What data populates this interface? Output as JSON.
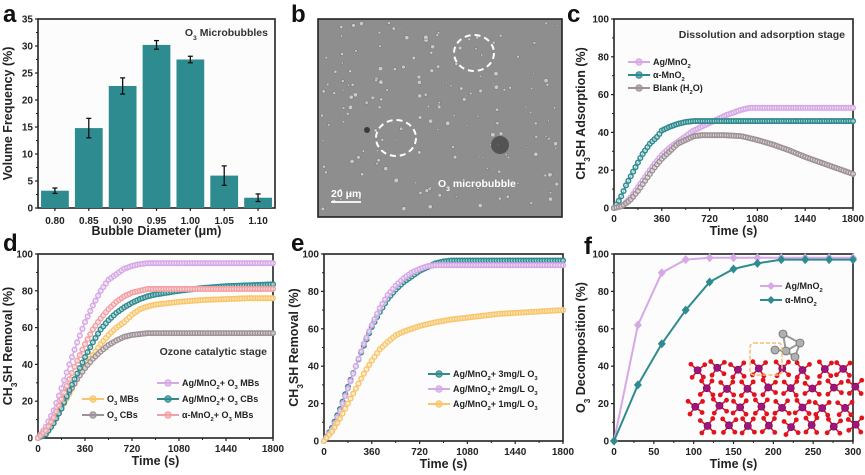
{
  "figure": {
    "panel_labels": [
      "a",
      "b",
      "c",
      "d",
      "e",
      "f"
    ]
  },
  "colors": {
    "teal": "#2e8b8f",
    "lilac": "#d7a8e6",
    "gray": "#9e9198",
    "orange": "#f8c66b",
    "pink": "#f2a0a4",
    "axis": "#222222",
    "micro_bg": "#8e8e8e"
  },
  "micrograph": {
    "label": "O3 microbubble",
    "label_main": "O",
    "label_sub": "3",
    "label_rest": " microbubble",
    "scale_bar": "20 μm"
  },
  "chart_data": [
    {
      "id": "a",
      "type": "bar",
      "title": "O3 Microbubbles",
      "title_main": "O",
      "title_sub": "3",
      "title_rest": " Microbubbles",
      "xlabel": "Bubble Diameter (μm)",
      "ylabel": "Volume Frequency (%)",
      "categories": [
        "0.80",
        "0.85",
        "0.90",
        "0.95",
        "1.00",
        "1.05",
        "1.10"
      ],
      "values": [
        3.2,
        14.8,
        22.6,
        30.2,
        27.5,
        6.0,
        1.9
      ],
      "errors": [
        0.5,
        1.8,
        1.5,
        0.8,
        0.6,
        1.8,
        0.7
      ],
      "ylim": [
        0,
        35
      ],
      "yticks": [
        0,
        5,
        10,
        15,
        20,
        25,
        30,
        35
      ],
      "grid": false
    },
    {
      "id": "c",
      "type": "line",
      "title": "Dissolution and adsorption stage",
      "xlabel": "Time (s)",
      "ylabel": "CH3SH Adsorption (%)",
      "ylabel_parts": [
        "CH",
        "3",
        "SH Adsorption (%)"
      ],
      "xlim": [
        0,
        1800
      ],
      "ylim": [
        0,
        100
      ],
      "xticks": [
        0,
        360,
        720,
        1080,
        1440,
        1800
      ],
      "yticks": [
        0,
        20,
        40,
        60,
        80,
        100
      ],
      "legend_position": "top-left",
      "series": [
        {
          "name": "Ag/MnO2",
          "legend_parts": [
            "Ag/MnO",
            "2",
            ""
          ],
          "color_key": "lilac",
          "x": [
            0,
            60,
            120,
            180,
            240,
            300,
            360,
            420,
            480,
            540,
            600,
            660,
            720,
            780,
            840,
            900,
            960,
            1020,
            1080,
            1200,
            1320,
            1440,
            1560,
            1680,
            1800
          ],
          "y": [
            0,
            1,
            5,
            11,
            17,
            23,
            28,
            32,
            35,
            38,
            41,
            43,
            45,
            47,
            49,
            50.5,
            52,
            53,
            53,
            53,
            53,
            53,
            53,
            53,
            53
          ]
        },
        {
          "name": "α-MnO2",
          "legend_parts": [
            "α-MnO",
            "2",
            ""
          ],
          "color_key": "teal",
          "x": [
            0,
            30,
            60,
            90,
            120,
            150,
            180,
            210,
            240,
            270,
            300,
            330,
            360,
            420,
            480,
            540,
            600,
            660,
            720,
            900,
            1080,
            1260,
            1440,
            1620,
            1800
          ],
          "y": [
            0,
            3,
            7,
            12,
            16,
            20,
            24,
            28,
            31,
            34,
            36,
            38,
            41,
            43,
            44.5,
            45.5,
            46,
            46,
            46,
            46,
            46,
            46,
            46,
            46,
            46
          ]
        },
        {
          "name": "Blank (H2O)",
          "legend_parts": [
            "Blank (H",
            "2",
            "O)"
          ],
          "color_key": "gray",
          "x": [
            0,
            60,
            120,
            180,
            240,
            300,
            360,
            420,
            480,
            540,
            600,
            660,
            720,
            840,
            960,
            1080,
            1200,
            1320,
            1440,
            1560,
            1680,
            1800
          ],
          "y": [
            0,
            1,
            4,
            9,
            15,
            21,
            26,
            30,
            34,
            36,
            38,
            38.5,
            38.5,
            38.5,
            38,
            36,
            33.5,
            30.5,
            27,
            24,
            21,
            18
          ]
        }
      ]
    },
    {
      "id": "d",
      "type": "line",
      "title": "Ozone catalytic stage",
      "xlabel": "Time (s)",
      "ylabel": "CH3SH Removal (%)",
      "ylabel_parts": [
        "CH",
        "3",
        "SH Removal (%)"
      ],
      "xlim": [
        0,
        1800
      ],
      "ylim": [
        0,
        100
      ],
      "xticks": [
        0,
        360,
        720,
        1080,
        1440,
        1800
      ],
      "yticks": [
        0,
        20,
        40,
        60,
        80,
        100
      ],
      "legend_position": "bottom-right",
      "series": [
        {
          "name": "O3 MBs",
          "legend_parts": [
            "O",
            "3",
            " MBs"
          ],
          "color_key": "orange",
          "x": [
            0,
            60,
            120,
            180,
            240,
            300,
            360,
            420,
            480,
            540,
            600,
            660,
            720,
            780,
            840,
            900,
            1080,
            1260,
            1440,
            1620,
            1800
          ],
          "y": [
            0,
            3,
            9,
            16,
            24,
            32,
            39,
            45,
            51,
            56,
            60,
            63,
            67,
            70,
            71.5,
            72.5,
            74,
            75,
            75.5,
            76,
            76
          ]
        },
        {
          "name": "O3 CBs",
          "legend_parts": [
            "O",
            "3",
            " CBs"
          ],
          "color_key": "gray",
          "x": [
            0,
            60,
            120,
            180,
            240,
            300,
            360,
            420,
            480,
            540,
            600,
            660,
            720,
            780,
            840,
            900,
            1080,
            1260,
            1440,
            1620,
            1800
          ],
          "y": [
            0,
            3,
            9,
            17,
            25,
            32,
            38,
            43,
            47,
            50.5,
            53,
            55,
            56,
            56.5,
            57,
            57,
            57,
            57,
            57,
            57,
            57
          ]
        },
        {
          "name": "Ag/MnO2+ O3 MBs",
          "legend_parts": [
            "Ag/MnO",
            "2",
            "+ O",
            "3",
            " MBs"
          ],
          "color_key": "lilac",
          "x": [
            0,
            60,
            120,
            180,
            240,
            300,
            360,
            420,
            480,
            540,
            600,
            660,
            720,
            780,
            840,
            900,
            1080,
            1260,
            1440,
            1620,
            1800
          ],
          "y": [
            0,
            6,
            15,
            27,
            40,
            52,
            63,
            72,
            80,
            86,
            89,
            92,
            93.5,
            94.5,
            95,
            95,
            95,
            95,
            95,
            95,
            95
          ]
        },
        {
          "name": "Ag/MnO2+ O3 CBs",
          "legend_parts": [
            "Ag/MnO",
            "2",
            "+ O",
            "3",
            " CBs"
          ],
          "color_key": "teal",
          "x": [
            0,
            60,
            120,
            180,
            240,
            300,
            360,
            420,
            480,
            540,
            600,
            660,
            720,
            780,
            840,
            900,
            1080,
            1260,
            1440,
            1620,
            1800
          ],
          "y": [
            0,
            2,
            8,
            16,
            26,
            35,
            44,
            52,
            59,
            64,
            68,
            71,
            73.5,
            75.5,
            77,
            78,
            80,
            81.5,
            82.5,
            83,
            83.5
          ]
        },
        {
          "name": "α-MnO2+ O3 MBs",
          "legend_parts": [
            "α-MnO",
            "2",
            "+ O",
            "3",
            " MBs"
          ],
          "color_key": "pink",
          "x": [
            0,
            60,
            120,
            180,
            240,
            300,
            360,
            420,
            480,
            540,
            600,
            660,
            720,
            780,
            840,
            900,
            1080,
            1260,
            1440,
            1620,
            1800
          ],
          "y": [
            0,
            4,
            11,
            21,
            32,
            42,
            51,
            59,
            65,
            70,
            74,
            77,
            79,
            80,
            81,
            81,
            81,
            81,
            81,
            81,
            81
          ]
        }
      ]
    },
    {
      "id": "e",
      "type": "line",
      "title": "",
      "xlabel": "Time (s)",
      "ylabel": "CH3SH Removal (%)",
      "ylabel_parts": [
        "CH",
        "3",
        "SH Removal (%)"
      ],
      "xlim": [
        0,
        1800
      ],
      "ylim": [
        0,
        100
      ],
      "xticks": [
        0,
        360,
        720,
        1080,
        1440,
        1800
      ],
      "yticks": [
        0,
        20,
        40,
        60,
        80,
        100
      ],
      "legend_position": "center-right",
      "series": [
        {
          "name": "Ag/MnO2+ 3mg/L O3",
          "legend_parts": [
            "Ag/MnO",
            "2",
            "+ 3mg/L O",
            "3",
            ""
          ],
          "color_key": "teal",
          "x": [
            0,
            60,
            120,
            180,
            240,
            300,
            360,
            420,
            480,
            540,
            600,
            660,
            720,
            780,
            840,
            900,
            960,
            1080,
            1260,
            1440,
            1620,
            1800
          ],
          "y": [
            0,
            7,
            17,
            29,
            40,
            51,
            61,
            69,
            76,
            81,
            85,
            88,
            91,
            93,
            95,
            96,
            96.5,
            96.5,
            96.5,
            96.5,
            96.5,
            96.5
          ]
        },
        {
          "name": "Ag/MnO2+ 2mg/L O3",
          "legend_parts": [
            "Ag/MnO",
            "2",
            "+ 2mg/L O",
            "3",
            ""
          ],
          "color_key": "lilac",
          "x": [
            0,
            60,
            120,
            180,
            240,
            300,
            360,
            420,
            480,
            540,
            600,
            660,
            720,
            780,
            840,
            900,
            960,
            1080,
            1260,
            1440,
            1620,
            1800
          ],
          "y": [
            0,
            6,
            16,
            28,
            40,
            52,
            62,
            71,
            78,
            83,
            87,
            90,
            92,
            93.5,
            94,
            94,
            94,
            94,
            94,
            94,
            94,
            94
          ]
        },
        {
          "name": "Ag/MnO2+ 1mg/L O3",
          "legend_parts": [
            "Ag/MnO",
            "2",
            "+ 1mg/L O",
            "3",
            ""
          ],
          "color_key": "orange",
          "x": [
            0,
            60,
            120,
            180,
            240,
            300,
            360,
            420,
            480,
            540,
            600,
            660,
            720,
            840,
            960,
            1080,
            1200,
            1320,
            1440,
            1560,
            1680,
            1800
          ],
          "y": [
            0,
            5,
            12,
            20,
            28,
            36,
            43,
            49,
            53,
            56.5,
            58.5,
            60,
            61.5,
            63.5,
            65,
            66,
            67,
            68,
            68.5,
            69,
            69.5,
            70
          ]
        }
      ]
    },
    {
      "id": "f",
      "type": "line",
      "title": "",
      "xlabel": "Time (s)",
      "ylabel": "O3 Decomposition (%)",
      "ylabel_parts": [
        "O",
        "3",
        " Decomposition (%)"
      ],
      "xlim": [
        0,
        300
      ],
      "ylim": [
        0,
        100
      ],
      "xticks": [
        0,
        50,
        100,
        150,
        200,
        250,
        300
      ],
      "yticks": [
        0,
        20,
        40,
        60,
        80,
        100
      ],
      "legend_position": "top-right",
      "marker": "diamond",
      "inset": "crystal structure of Ag/MnO2 with adsorbed O3 (Mn purple, O red, Ag gray)",
      "series": [
        {
          "name": "Ag/MnO2",
          "legend_parts": [
            "Ag/MnO",
            "2",
            ""
          ],
          "color_key": "lilac",
          "x": [
            0,
            30,
            60,
            90,
            120,
            150,
            180,
            210,
            240,
            270,
            300
          ],
          "y": [
            0,
            62,
            90,
            97,
            98,
            98,
            98,
            98,
            98,
            98,
            98
          ]
        },
        {
          "name": "α-MnO2",
          "legend_parts": [
            "α-MnO",
            "2",
            ""
          ],
          "color_key": "teal",
          "x": [
            0,
            30,
            60,
            90,
            120,
            150,
            180,
            210,
            240,
            270,
            300
          ],
          "y": [
            0,
            30,
            52,
            70,
            85,
            92,
            95,
            97,
            97,
            97,
            97
          ]
        }
      ]
    }
  ]
}
